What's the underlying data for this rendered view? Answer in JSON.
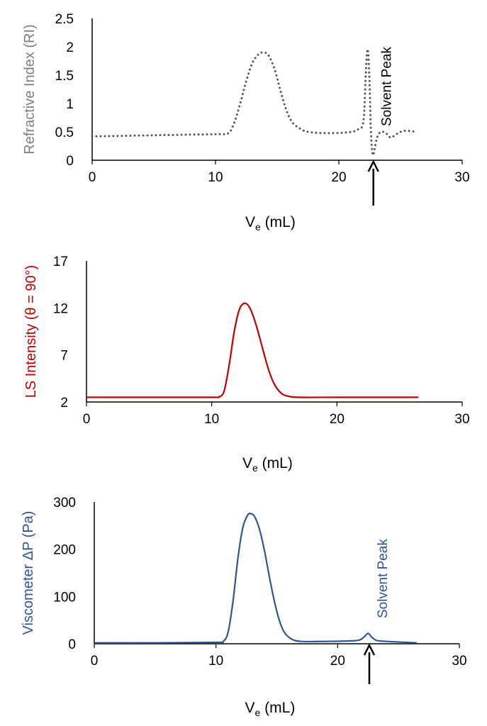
{
  "chart_data": [
    {
      "type": "line",
      "id": "ri",
      "ylabel": "Refractive Index (RI)",
      "xlabel_main": "V",
      "xlabel_sub": "e",
      "xlabel_unit": " (mL)",
      "xlim": [
        0,
        30
      ],
      "ylim": [
        0,
        2.5
      ],
      "xticks": [
        "0",
        "10",
        "20",
        "30"
      ],
      "xtick_values": [
        0,
        10,
        20,
        30
      ],
      "yticks": [
        "0",
        "0.5",
        "1",
        "1.5",
        "2",
        "2.5"
      ],
      "ytick_values": [
        0,
        0.5,
        1,
        1.5,
        2,
        2.5
      ],
      "color": "#555555",
      "ylabel_color": "#7f7f7f",
      "style": "dotted",
      "annotation": {
        "text": "Solvent Peak",
        "x": 22.8,
        "color": "#000000"
      },
      "x": [
        0,
        5,
        10,
        11,
        11.5,
        12,
        12.5,
        13,
        13.5,
        13.9,
        14.3,
        14.8,
        15.3,
        15.8,
        16.3,
        17,
        17.5,
        18.5,
        20,
        21,
        21.6,
        22,
        22.2,
        22.35,
        22.5,
        22.6,
        22.75,
        22.9,
        23.1,
        23.4,
        23.8,
        24.2,
        24.6,
        25,
        25.5,
        26.3
      ],
      "y": [
        0.42,
        0.44,
        0.46,
        0.47,
        0.65,
        1.0,
        1.4,
        1.72,
        1.87,
        1.9,
        1.85,
        1.6,
        1.2,
        0.85,
        0.65,
        0.54,
        0.5,
        0.48,
        0.48,
        0.5,
        0.55,
        0.7,
        1.6,
        1.95,
        1.3,
        0.5,
        0.1,
        0.2,
        0.4,
        0.5,
        0.48,
        0.4,
        0.45,
        0.5,
        0.52,
        0.5
      ]
    },
    {
      "type": "line",
      "id": "ls",
      "ylabel": "LS Intensity (θ = 90°)",
      "xlabel_main": "V",
      "xlabel_sub": "e",
      "xlabel_unit": " (mL)",
      "xlim": [
        0,
        30
      ],
      "ylim": [
        2,
        17
      ],
      "xticks": [
        "0",
        "10",
        "20",
        "30"
      ],
      "xtick_values": [
        0,
        10,
        20,
        30
      ],
      "yticks": [
        "2",
        "7",
        "12",
        "17"
      ],
      "ytick_values": [
        2,
        7,
        12,
        17
      ],
      "color": "#c00000",
      "ylabel_color": "#c00000",
      "style": "solid",
      "x": [
        0,
        5,
        10,
        10.6,
        11,
        11.4,
        11.8,
        12.2,
        12.6,
        13,
        13.4,
        13.8,
        14.2,
        14.6,
        15,
        15.5,
        16,
        17,
        20,
        26.5
      ],
      "y": [
        2.5,
        2.5,
        2.5,
        2.55,
        3.2,
        6,
        9.5,
        11.8,
        12.5,
        12.1,
        10.8,
        9,
        7,
        5.2,
        3.9,
        3,
        2.65,
        2.5,
        2.5,
        2.5
      ]
    },
    {
      "type": "line",
      "id": "visc",
      "ylabel": "Viscometer ΔP  (Pa)",
      "xlabel_main": "V",
      "xlabel_sub": "e",
      "xlabel_unit": " (mL)",
      "xlim": [
        0,
        30
      ],
      "ylim": [
        0,
        300
      ],
      "xticks": [
        "0",
        "10",
        "20",
        "30"
      ],
      "xtick_values": [
        0,
        10,
        20,
        30
      ],
      "yticks": [
        "0",
        "100",
        "200",
        "300"
      ],
      "ytick_values": [
        0,
        100,
        200,
        300
      ],
      "color": "#2f5597",
      "ylabel_color": "#2f5597",
      "style": "solid",
      "annotation": {
        "text": "Solvent Peak",
        "x": 22.6,
        "color": "#2f5597"
      },
      "x": [
        0,
        5,
        10,
        10.6,
        11,
        11.4,
        11.8,
        12.2,
        12.6,
        12.9,
        13.2,
        13.6,
        14,
        14.4,
        14.8,
        15.2,
        15.6,
        16.2,
        17,
        19,
        21,
        21.8,
        22.2,
        22.5,
        22.8,
        23.2,
        24,
        26.5
      ],
      "y": [
        2,
        2,
        3,
        5,
        25,
        90,
        180,
        245,
        272,
        275,
        268,
        240,
        195,
        140,
        90,
        50,
        25,
        10,
        5,
        5,
        6,
        8,
        15,
        22,
        14,
        7,
        5,
        2
      ]
    }
  ]
}
